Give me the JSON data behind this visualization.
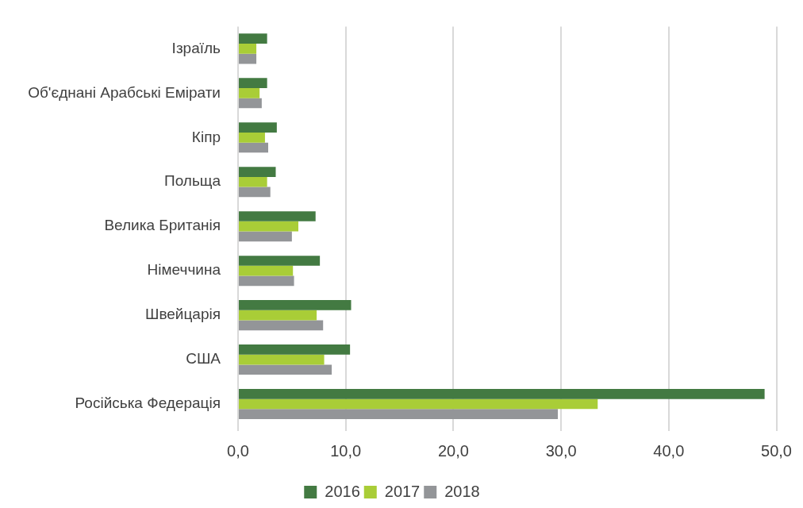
{
  "chart_data": {
    "type": "bar",
    "orientation": "horizontal",
    "categories": [
      "Ізраїль",
      "Об'єднані Арабські Емірати",
      "Кіпр",
      "Польща",
      "Велика Британія",
      "Німеччина",
      "Швейцарія",
      "США",
      "Російська Федерація"
    ],
    "series": [
      {
        "name": "2016",
        "color": "#437a42",
        "values": [
          2.7,
          2.7,
          3.6,
          3.5,
          7.2,
          7.6,
          10.5,
          10.4,
          48.9
        ]
      },
      {
        "name": "2017",
        "color": "#a9cd37",
        "values": [
          1.7,
          2.0,
          2.5,
          2.7,
          5.6,
          5.1,
          7.3,
          8.0,
          33.4
        ]
      },
      {
        "name": "2018",
        "color": "#939598",
        "values": [
          1.7,
          2.2,
          2.8,
          3.0,
          5.0,
          5.2,
          7.9,
          8.7,
          29.7
        ]
      }
    ],
    "xlim": [
      0,
      50
    ],
    "xticks": [
      {
        "value": 0,
        "label": "0,0"
      },
      {
        "value": 10,
        "label": "10,0"
      },
      {
        "value": 20,
        "label": "20,0"
      },
      {
        "value": 30,
        "label": "30,0"
      },
      {
        "value": 40,
        "label": "40,0"
      },
      {
        "value": 50,
        "label": "50,0"
      }
    ],
    "grid": "x",
    "legend": "bottom"
  }
}
